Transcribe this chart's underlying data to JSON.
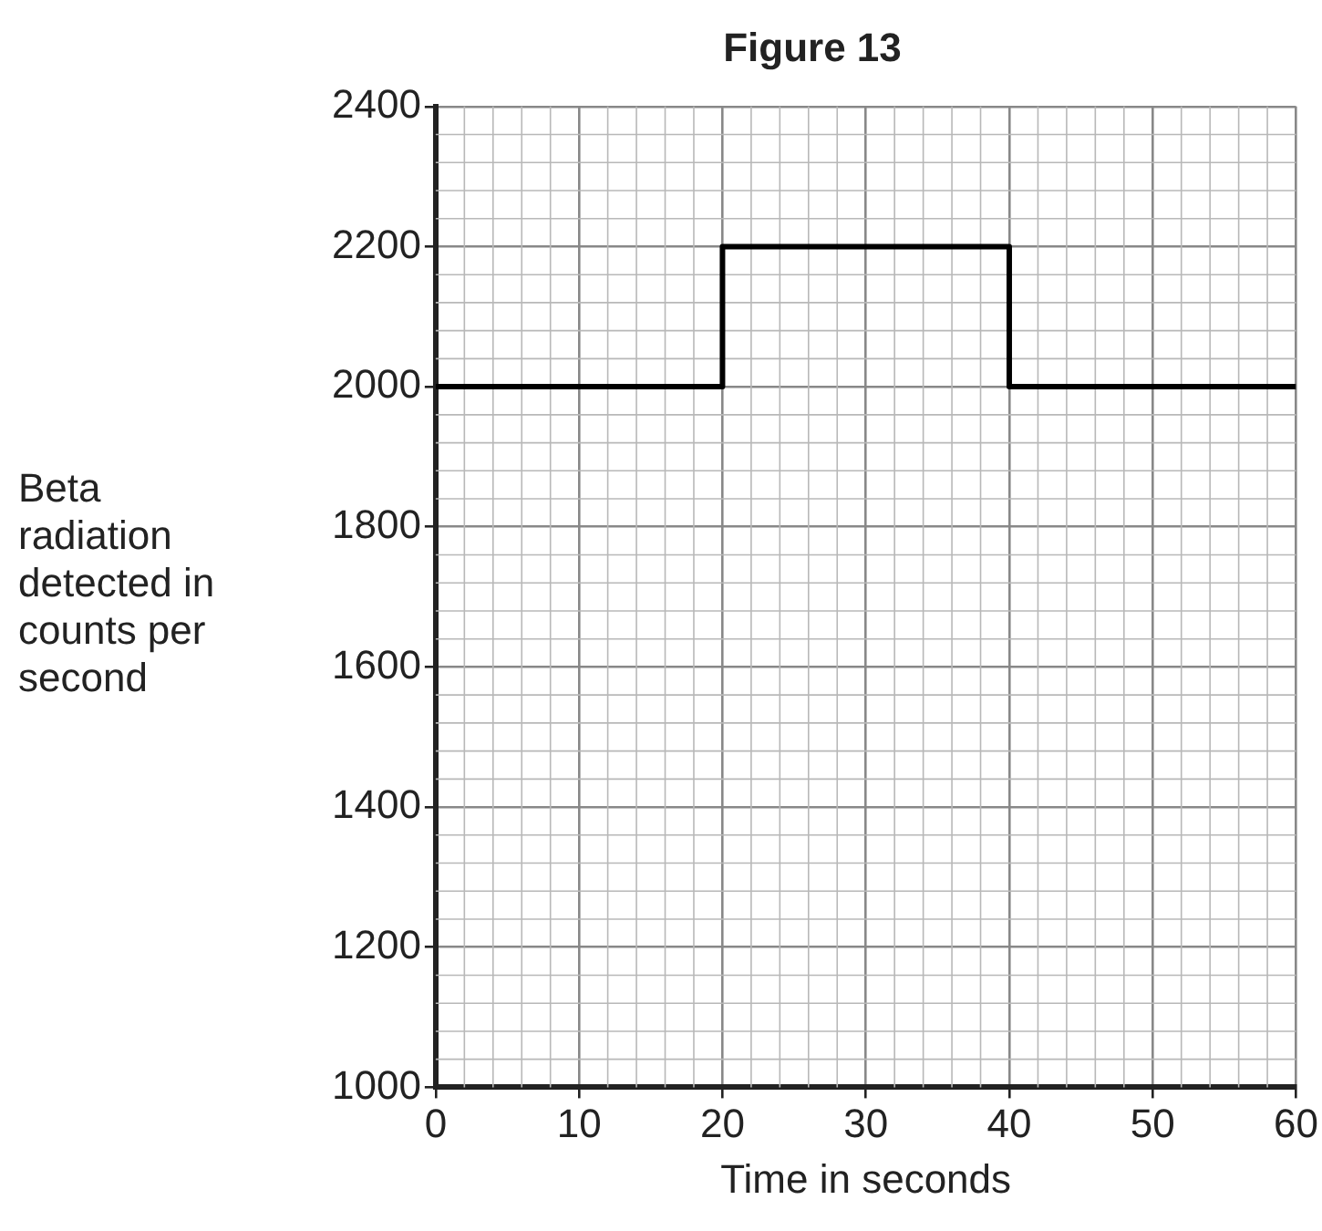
{
  "chart_data": {
    "type": "step",
    "title": "Figure 13",
    "xlabel": "Time in seconds",
    "ylabel": "Beta radiation detected in counts per second",
    "x": [
      0,
      20,
      40,
      60
    ],
    "series": [
      {
        "color": "#000000",
        "values": [
          2000,
          2200,
          2000,
          2000
        ]
      }
    ],
    "xlim": [
      0,
      60
    ],
    "xticks": [
      0,
      10,
      20,
      30,
      40,
      50,
      60
    ],
    "ylim": [
      1000,
      2400
    ],
    "yticks": [
      1000,
      1200,
      1400,
      1600,
      1800,
      2000,
      2200,
      2400
    ],
    "grid": true,
    "legend": false,
    "marker": "none",
    "line_style": "solid"
  }
}
